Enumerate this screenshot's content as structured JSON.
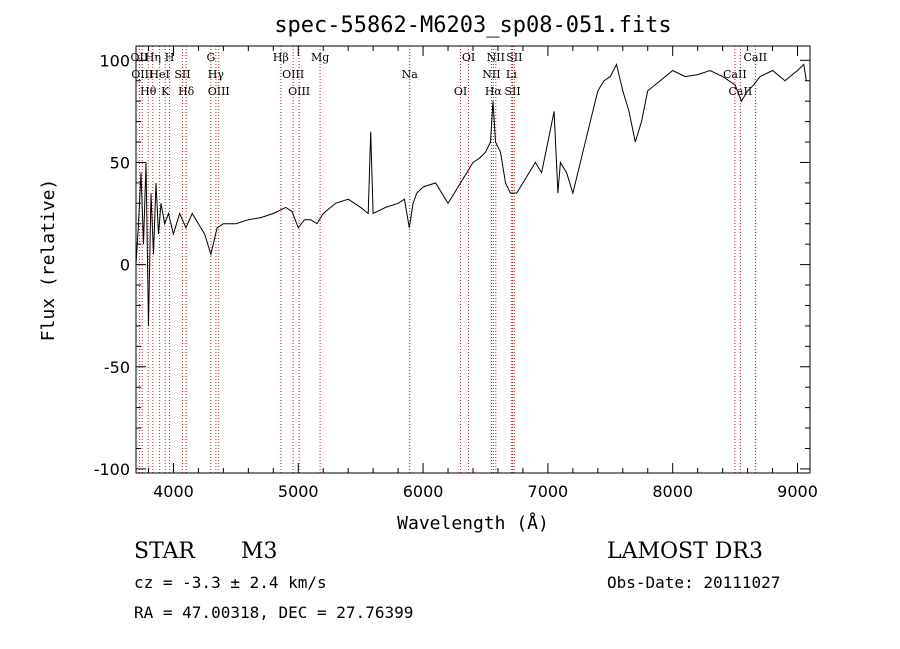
{
  "chart_data": {
    "type": "line",
    "title": "spec-55862-M6203_sp08-051.fits",
    "xlabel": "Wavelength (Å)",
    "ylabel": "Flux (relative)",
    "xlim": [
      3700,
      9100
    ],
    "ylim": [
      -102,
      107
    ],
    "xticks": [
      4000,
      5000,
      6000,
      7000,
      8000,
      9000
    ],
    "yticks": [
      -100,
      -50,
      0,
      50,
      100
    ],
    "grid": false,
    "line_color": "#000000",
    "marker_color": "#b22222",
    "series": [
      {
        "name": "spectrum",
        "x": [
          3700,
          3720,
          3740,
          3760,
          3780,
          3800,
          3820,
          3840,
          3860,
          3880,
          3900,
          3930,
          3960,
          4000,
          4050,
          4100,
          4150,
          4200,
          4250,
          4300,
          4350,
          4400,
          4500,
          4600,
          4700,
          4800,
          4900,
          4950,
          5000,
          5050,
          5100,
          5150,
          5200,
          5300,
          5400,
          5500,
          5560,
          5580,
          5600,
          5700,
          5800,
          5850,
          5890,
          5920,
          5950,
          6000,
          6100,
          6200,
          6250,
          6300,
          6350,
          6400,
          6450,
          6500,
          6540,
          6560,
          6580,
          6620,
          6660,
          6700,
          6750,
          6800,
          6900,
          6950,
          7000,
          7050,
          7080,
          7100,
          7150,
          7200,
          7300,
          7400,
          7450,
          7500,
          7550,
          7600,
          7650,
          7700,
          7750,
          7800,
          7900,
          8000,
          8100,
          8200,
          8300,
          8400,
          8500,
          8550,
          8600,
          8650,
          8700,
          8800,
          8900,
          9000,
          9050,
          9070
        ],
        "y": [
          0,
          20,
          45,
          10,
          50,
          -30,
          35,
          5,
          40,
          15,
          30,
          20,
          25,
          15,
          25,
          18,
          25,
          20,
          15,
          5,
          18,
          20,
          20,
          22,
          23,
          25,
          28,
          26,
          18,
          22,
          22,
          20,
          25,
          30,
          32,
          28,
          25,
          65,
          25,
          28,
          30,
          32,
          18,
          30,
          35,
          38,
          40,
          30,
          35,
          40,
          45,
          50,
          52,
          55,
          60,
          80,
          60,
          55,
          40,
          35,
          35,
          40,
          50,
          45,
          60,
          75,
          35,
          50,
          45,
          35,
          60,
          85,
          90,
          92,
          98,
          85,
          75,
          60,
          70,
          85,
          90,
          95,
          92,
          93,
          95,
          92,
          88,
          80,
          85,
          88,
          92,
          95,
          90,
          95,
          98,
          90
        ]
      }
    ],
    "line_markers": [
      {
        "x": 3727,
        "labels": [
          "OII"
        ]
      },
      {
        "x": 3750,
        "labels": [
          "OIII"
        ]
      },
      {
        "x": 3798,
        "labels": [
          "Hθ"
        ]
      },
      {
        "x": 3835,
        "labels": [
          "Hη"
        ]
      },
      {
        "x": 3889,
        "labels": [
          "HeI"
        ]
      },
      {
        "x": 3934,
        "labels": [
          "K"
        ]
      },
      {
        "x": 3969,
        "labels": [
          "H"
        ]
      },
      {
        "x": 4072,
        "labels": [
          "SII"
        ]
      },
      {
        "x": 4102,
        "labels": [
          "Hδ"
        ]
      },
      {
        "x": 4300,
        "labels": [
          "G"
        ]
      },
      {
        "x": 4340,
        "labels": [
          "Hγ"
        ]
      },
      {
        "x": 4363,
        "labels": [
          "OIII"
        ]
      },
      {
        "x": 4861,
        "labels": [
          "Hβ"
        ]
      },
      {
        "x": 4959,
        "labels": [
          "OIII"
        ]
      },
      {
        "x": 5007,
        "labels": [
          "OIII"
        ]
      },
      {
        "x": 5175,
        "labels": [
          "Mg"
        ]
      },
      {
        "x": 5893,
        "labels": [
          "Na"
        ]
      },
      {
        "x": 6300,
        "labels": [
          "OI"
        ]
      },
      {
        "x": 6364,
        "labels": [
          "OI"
        ]
      },
      {
        "x": 6548,
        "labels": [
          "NII"
        ]
      },
      {
        "x": 6563,
        "labels": [
          "Hα"
        ]
      },
      {
        "x": 6583,
        "labels": [
          "NII"
        ]
      },
      {
        "x": 6707,
        "labels": [
          "Li"
        ]
      },
      {
        "x": 6717,
        "labels": [
          "SII"
        ]
      },
      {
        "x": 6731,
        "labels": [
          "SII"
        ]
      },
      {
        "x": 8498,
        "labels": [
          "CaII"
        ]
      },
      {
        "x": 8542,
        "labels": [
          "CaII"
        ]
      },
      {
        "x": 8662,
        "labels": [
          "CaII"
        ]
      }
    ]
  },
  "info": {
    "object_class": "STAR",
    "subclass": "M3",
    "survey": "LAMOST DR3",
    "cz": "cz = -3.3 ± 2.4 km/s",
    "obs_date": "Obs-Date: 20111027",
    "coords": "RA =  47.00318, DEC =  27.76399"
  }
}
